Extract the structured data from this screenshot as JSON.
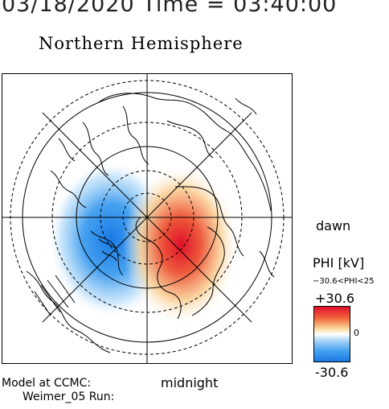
{
  "header": {
    "datetime": "03/18/2020 Time = 03:40:00"
  },
  "map": {
    "title": "Northern Hemisphere",
    "label_dawn": "dawn",
    "label_midnight": "midnight",
    "potential_pattern": "two-cell convection: negative (blue) cell on dusk side, positive (red) cell on dawn side"
  },
  "colorbar": {
    "title": "PHI [kV]",
    "range_text": "−30.6<PHI<25",
    "max_label": "+30.6",
    "min_label": "-30.6",
    "zero_label": "0",
    "colors": {
      "max": "#e0102a",
      "mid": "#ffffff",
      "min": "#1a7ae6"
    }
  },
  "footer": {
    "model_line1": "Model at CCMC:",
    "model_line2": "Weimer_05 Run:"
  }
}
